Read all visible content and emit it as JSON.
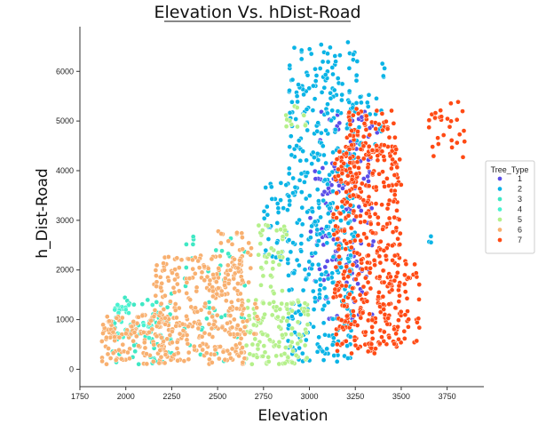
{
  "chart_data": {
    "type": "scatter",
    "title": "Elevation Vs. hDist-Road",
    "xlabel": "Elevation",
    "ylabel": "h_Dist-Road",
    "xlim": [
      1750,
      3950
    ],
    "ylim": [
      -350,
      6900
    ],
    "x_ticks": [
      1750,
      2000,
      2250,
      2500,
      2750,
      3000,
      3250,
      3500,
      3750
    ],
    "y_ticks": [
      0,
      1000,
      2000,
      3000,
      4000,
      5000,
      6000
    ],
    "grid": false,
    "legend": {
      "title": "Tree_Type",
      "placement": "right"
    },
    "series": [
      {
        "name": "1",
        "color": "#5a4de8",
        "regions": [
          {
            "x_range": [
              3000,
              3350
            ],
            "y_range": [
              1000,
              4200
            ],
            "count": 110
          },
          {
            "x_range": [
              3050,
              3400
            ],
            "y_range": [
              3500,
              5200
            ],
            "count": 40
          }
        ]
      },
      {
        "name": "2",
        "color": "#0ab4e6",
        "regions": [
          {
            "x_range": [
              2880,
              3250
            ],
            "y_range": [
              150,
              6600
            ],
            "count": 420
          },
          {
            "x_range": [
              2750,
              2900
            ],
            "y_range": [
              2200,
              3800
            ],
            "count": 40
          },
          {
            "x_range": [
              3250,
              3420
            ],
            "y_range": [
              4500,
              6300
            ],
            "count": 30
          },
          {
            "x_range": [
              3620,
              3670
            ],
            "y_range": [
              2550,
              2680
            ],
            "count": 3
          }
        ]
      },
      {
        "name": "3",
        "color": "#3fe8c4",
        "regions": [
          {
            "x_range": [
              1900,
              2250
            ],
            "y_range": [
              100,
              1450
            ],
            "count": 60
          },
          {
            "x_range": [
              2200,
              2650
            ],
            "y_range": [
              100,
              2900
            ],
            "count": 50
          }
        ]
      },
      {
        "name": "4",
        "color": "#48f2d0",
        "regions": [
          {
            "x_range": [
              1930,
              2150
            ],
            "y_range": [
              600,
              1400
            ],
            "count": 30
          }
        ]
      },
      {
        "name": "5",
        "color": "#b4f08a",
        "regions": [
          {
            "x_range": [
              2650,
              3000
            ],
            "y_range": [
              100,
              1400
            ],
            "count": 130
          },
          {
            "x_range": [
              2720,
              2880
            ],
            "y_range": [
              1500,
              3100
            ],
            "count": 40
          },
          {
            "x_range": [
              2870,
              2980
            ],
            "y_range": [
              4800,
              5300
            ],
            "count": 12
          }
        ]
      },
      {
        "name": "6",
        "color": "#f8b070",
        "regions": [
          {
            "x_range": [
              1870,
              2300
            ],
            "y_range": [
              100,
              1100
            ],
            "count": 150
          },
          {
            "x_range": [
              2150,
              2650
            ],
            "y_range": [
              100,
              2300
            ],
            "count": 260
          },
          {
            "x_range": [
              2450,
              2720
            ],
            "y_range": [
              700,
              2800
            ],
            "count": 70
          }
        ]
      },
      {
        "name": "7",
        "color": "#ff4a14",
        "regions": [
          {
            "x_range": [
              3130,
              3500
            ],
            "y_range": [
              300,
              4500
            ],
            "count": 430
          },
          {
            "x_range": [
              3200,
              3480
            ],
            "y_range": [
              4300,
              5300
            ],
            "count": 60
          },
          {
            "x_range": [
              3400,
              3600
            ],
            "y_range": [
              500,
              2200
            ],
            "count": 50
          },
          {
            "x_range": [
              3650,
              3850
            ],
            "y_range": [
              4200,
              5450
            ],
            "count": 30
          }
        ]
      }
    ]
  }
}
